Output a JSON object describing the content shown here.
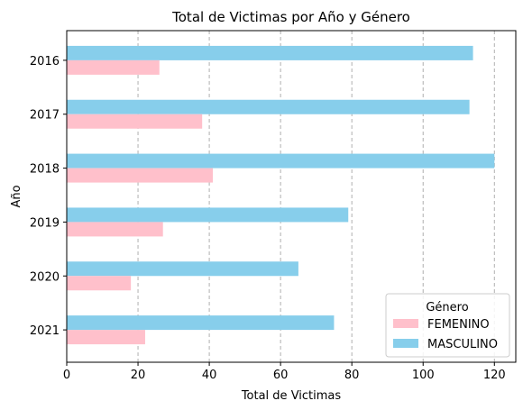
{
  "chart_data": {
    "type": "bar",
    "orientation": "horizontal",
    "title": "Total de Victimas por Año y Género",
    "xlabel": "Total de Victimas",
    "ylabel": "Año",
    "categories": [
      "2016",
      "2017",
      "2018",
      "2019",
      "2020",
      "2021"
    ],
    "series": [
      {
        "name": "FEMENINO",
        "color": "#FFC0CB",
        "values": [
          26,
          38,
          41,
          27,
          18,
          22
        ]
      },
      {
        "name": "MASCULINO",
        "color": "#87CEEB",
        "values": [
          114,
          113,
          120,
          79,
          65,
          75
        ]
      }
    ],
    "xlim": [
      0,
      126
    ],
    "xticks": [
      0,
      20,
      40,
      60,
      80,
      100,
      120
    ],
    "grid": "x-dashed",
    "legend": {
      "title": "Género",
      "position": "lower-right"
    }
  }
}
